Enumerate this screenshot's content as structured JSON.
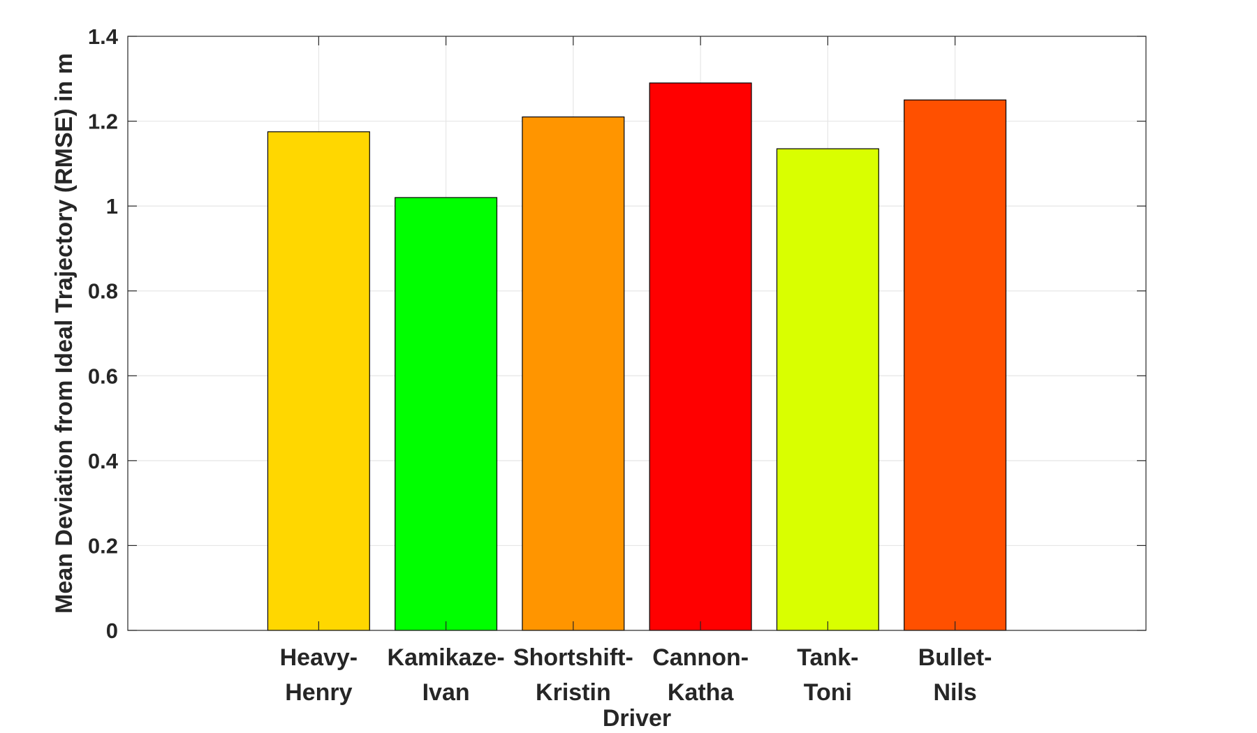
{
  "chart_data": {
    "type": "bar",
    "categories": [
      [
        "Heavy-",
        "Henry"
      ],
      [
        "Kamikaze-",
        "Ivan"
      ],
      [
        "Shortshift-",
        "Kristin"
      ],
      [
        "Cannon-",
        "Katha"
      ],
      [
        "Tank-",
        "Toni"
      ],
      [
        "Bullet-",
        "Nils"
      ]
    ],
    "values": [
      1.175,
      1.02,
      1.21,
      1.29,
      1.135,
      1.25
    ],
    "colors": [
      "#FFD700",
      "#00FF00",
      "#FF9500",
      "#FF0000",
      "#D9FF00",
      "#FF5000"
    ],
    "xlabel": "Driver",
    "ylabel": "Mean Deviation from Ideal Trajectory (RMSE) in m",
    "ylim": [
      0,
      1.4
    ],
    "xlim": [
      0,
      8
    ],
    "yticks": [
      "0",
      "0.2",
      "0.4",
      "0.6",
      "0.8",
      "1",
      "1.2",
      "1.4"
    ],
    "grid": true
  }
}
